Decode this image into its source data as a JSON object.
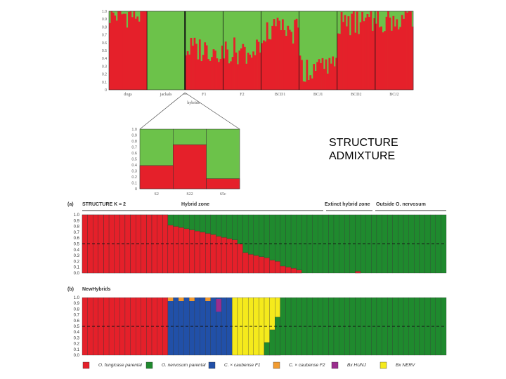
{
  "side_labels": {
    "line1": "STRUCTURE",
    "line2": "ADMIXTURE"
  },
  "colors": {
    "red": "#e5202a",
    "green": "#6cc24a",
    "dark_green": "#1f8a2e",
    "blue": "#2150a8",
    "orange": "#f29b30",
    "purple": "#9b2d8e",
    "yellow": "#f5ea1c"
  },
  "chart_data": [
    {
      "type": "bar",
      "title": "",
      "ylim": [
        0,
        1.0
      ],
      "yticks": [
        "0",
        "0.1",
        "0.2",
        "0.3",
        "0.4",
        "0.5",
        "0.6",
        "0.7",
        "0.8",
        "0.9",
        "1.0"
      ],
      "groups": [
        {
          "label": "dogs",
          "red_level": 0.96
        },
        {
          "label": "jackals",
          "red_level": 0.0
        },
        {
          "label": "F1",
          "red_level": 0.52
        },
        {
          "label": "F2",
          "red_level": 0.5
        },
        {
          "label": "BCD1",
          "red_level": 0.75
        },
        {
          "label": "BCJ1",
          "red_level": 0.27
        },
        {
          "label": "BCD2",
          "red_level": 0.85
        },
        {
          "label": "BCJ2",
          "red_level": 0.9
        }
      ],
      "hybrids_label": "hybrids"
    },
    {
      "type": "bar",
      "title": "",
      "ylim": [
        0,
        1.0
      ],
      "yticks": [
        "0",
        "0.1",
        "0.2",
        "0.3",
        "0.4",
        "0.5",
        "0.6",
        "0.7",
        "0.8",
        "0.9",
        "1.0"
      ],
      "categories": [
        "S2",
        "S22",
        "65c"
      ],
      "series": [
        {
          "values": [
            0.39,
            0.74,
            0.17
          ]
        },
        {
          "values": [
            0.61,
            0.26,
            0.83
          ]
        }
      ]
    },
    {
      "type": "bar",
      "panel": "(a)",
      "title": "STRUCTURE K = 2",
      "region_labels": [
        "Hybrid zone",
        "Extinct hybrid zone",
        "Outside O. nervosum"
      ],
      "ylim": [
        0,
        1.0
      ],
      "yticks": [
        "0.0",
        "0.1",
        "0.2",
        "0.3",
        "0.4",
        "0.5",
        "0.6",
        "0.7",
        "0.8",
        "0.9",
        "1.0"
      ],
      "individuals": 68,
      "red_share": [
        1,
        1,
        1,
        1,
        1,
        1,
        1,
        1,
        1,
        1,
        1,
        1,
        1,
        1,
        1,
        1,
        0.82,
        0.8,
        0.78,
        0.76,
        0.74,
        0.72,
        0.7,
        0.68,
        0.66,
        0.63,
        0.61,
        0.59,
        0.57,
        0.5,
        0.35,
        0.32,
        0.3,
        0.28,
        0.26,
        0.22,
        0.2,
        0.12,
        0.1,
        0.08,
        0.05,
        0,
        0,
        0,
        0,
        0,
        0,
        0,
        0,
        0,
        0,
        0.03,
        0,
        0,
        0,
        0,
        0,
        0,
        0,
        0,
        0,
        0,
        0,
        0,
        0,
        0,
        0,
        0
      ]
    },
    {
      "type": "bar",
      "panel": "(b)",
      "title": "NewHybrids",
      "ylim": [
        0,
        1.0
      ],
      "yticks": [
        "0.0",
        "0.1",
        "0.2",
        "0.3",
        "0.4",
        "0.5",
        "0.6",
        "0.7",
        "0.8",
        "0.9",
        "1.0"
      ],
      "individuals": 68,
      "segments": [
        {
          "class": "O. fungicase parental",
          "color": "red",
          "from": 0,
          "to": 15
        },
        {
          "class": "C. x caubense F1",
          "color": "blue",
          "from": 16,
          "to": 27
        },
        {
          "class": "Bx NERV",
          "color": "yellow",
          "from": 28,
          "to": 36
        },
        {
          "class": "O. nervosum parental",
          "color": "dark_green",
          "from": 37,
          "to": 67
        }
      ],
      "legend": [
        {
          "label": "O. fungicase parental",
          "color": "red"
        },
        {
          "label": "O. nervosum parental",
          "color": "dark_green"
        },
        {
          "label": "C. × caubense F1",
          "color": "blue"
        },
        {
          "label": "C. × caubense F2",
          "color": "orange"
        },
        {
          "label": "Bx HUNJ",
          "color": "purple"
        },
        {
          "label": "Bx NERV",
          "color": "yellow"
        }
      ]
    }
  ]
}
